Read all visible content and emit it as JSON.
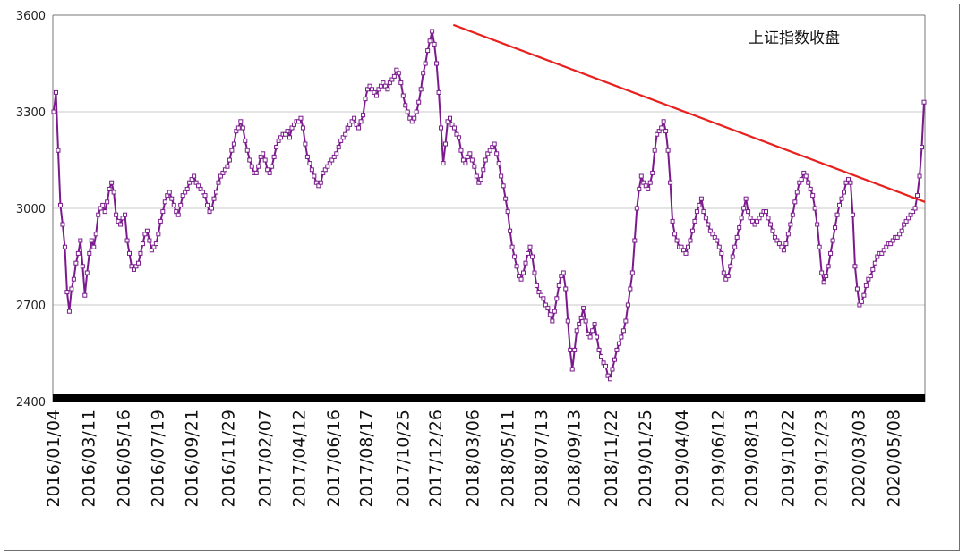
{
  "chart_data": {
    "type": "line",
    "title": "上证指数收盘",
    "xlabel": "",
    "ylabel": "",
    "ylim": [
      2400,
      3600
    ],
    "yticks": [
      2400,
      2700,
      3000,
      3300,
      3600
    ],
    "grid": true,
    "legend": "none",
    "date_range": [
      "2016/01/04",
      "2020/07/07"
    ],
    "tick_labels": [
      "2016/01/04",
      "2016/03/11",
      "2016/05/16",
      "2016/07/19",
      "2016/09/21",
      "2016/11/29",
      "2017/02/07",
      "2017/04/12",
      "2017/06/16",
      "2017/08/17",
      "2017/10/25",
      "2017/12/26",
      "2018/03/06",
      "2018/05/11",
      "2018/07/13",
      "2018/09/13",
      "2018/11/22",
      "2019/01/25",
      "2019/04/04",
      "2019/06/12",
      "2019/08/13",
      "2019/10/22",
      "2019/12/23",
      "2020/03/03",
      "2020/05/08"
    ],
    "series": [
      {
        "values": [
          3300,
          3360,
          3180,
          3010,
          2950,
          2880,
          2740,
          2680,
          2750,
          2780,
          2830,
          2860,
          2900,
          2820,
          2730,
          2800,
          2860,
          2900,
          2880,
          2920,
          2980,
          3000,
          3010,
          2990,
          3020,
          3060,
          3080,
          3050,
          2980,
          2960,
          2950,
          2970,
          2980,
          2900,
          2860,
          2820,
          2810,
          2820,
          2830,
          2860,
          2890,
          2920,
          2930,
          2900,
          2870,
          2880,
          2890,
          2920,
          2960,
          2990,
          3020,
          3040,
          3050,
          3030,
          3010,
          2990,
          2980,
          3010,
          3040,
          3050,
          3060,
          3080,
          3090,
          3100,
          3080,
          3070,
          3060,
          3050,
          3040,
          3010,
          2990,
          3000,
          3030,
          3050,
          3080,
          3100,
          3110,
          3120,
          3130,
          3150,
          3180,
          3200,
          3240,
          3250,
          3270,
          3250,
          3210,
          3180,
          3150,
          3130,
          3110,
          3110,
          3130,
          3160,
          3170,
          3150,
          3120,
          3110,
          3130,
          3160,
          3190,
          3210,
          3220,
          3230,
          3230,
          3240,
          3220,
          3250,
          3260,
          3270,
          3270,
          3280,
          3250,
          3200,
          3160,
          3140,
          3120,
          3100,
          3080,
          3070,
          3080,
          3110,
          3120,
          3130,
          3140,
          3150,
          3160,
          3170,
          3190,
          3210,
          3220,
          3230,
          3250,
          3260,
          3270,
          3280,
          3260,
          3250,
          3270,
          3290,
          3340,
          3370,
          3380,
          3370,
          3360,
          3350,
          3370,
          3380,
          3390,
          3380,
          3370,
          3390,
          3400,
          3410,
          3430,
          3420,
          3390,
          3350,
          3320,
          3300,
          3280,
          3270,
          3280,
          3300,
          3330,
          3370,
          3420,
          3450,
          3490,
          3520,
          3550,
          3510,
          3450,
          3360,
          3250,
          3140,
          3200,
          3270,
          3280,
          3260,
          3250,
          3230,
          3220,
          3180,
          3150,
          3140,
          3160,
          3170,
          3150,
          3130,
          3100,
          3080,
          3090,
          3120,
          3150,
          3170,
          3180,
          3190,
          3200,
          3170,
          3140,
          3100,
          3070,
          3030,
          2990,
          2930,
          2880,
          2850,
          2820,
          2790,
          2780,
          2800,
          2830,
          2860,
          2880,
          2850,
          2800,
          2760,
          2740,
          2730,
          2720,
          2700,
          2690,
          2670,
          2650,
          2680,
          2720,
          2760,
          2790,
          2800,
          2750,
          2650,
          2560,
          2500,
          2560,
          2620,
          2640,
          2660,
          2690,
          2650,
          2610,
          2600,
          2620,
          2640,
          2600,
          2560,
          2540,
          2520,
          2510,
          2480,
          2470,
          2500,
          2530,
          2560,
          2580,
          2600,
          2620,
          2650,
          2700,
          2750,
          2800,
          2900,
          3000,
          3060,
          3100,
          3080,
          3070,
          3060,
          3080,
          3110,
          3180,
          3230,
          3240,
          3250,
          3270,
          3240,
          3180,
          3080,
          2960,
          2920,
          2900,
          2880,
          2880,
          2870,
          2860,
          2880,
          2900,
          2930,
          2960,
          2990,
          3010,
          3030,
          2990,
          2970,
          2950,
          2930,
          2920,
          2910,
          2900,
          2880,
          2860,
          2800,
          2780,
          2790,
          2820,
          2850,
          2880,
          2910,
          2940,
          2970,
          3000,
          3030,
          2990,
          2970,
          2960,
          2950,
          2960,
          2970,
          2980,
          2990,
          2990,
          2970,
          2950,
          2930,
          2910,
          2900,
          2890,
          2880,
          2870,
          2890,
          2920,
          2950,
          2980,
          3020,
          3050,
          3080,
          3090,
          3110,
          3100,
          3080,
          3060,
          3040,
          3000,
          2950,
          2880,
          2800,
          2770,
          2790,
          2820,
          2860,
          2900,
          2940,
          2980,
          3010,
          3030,
          3050,
          3080,
          3090,
          3080,
          2980,
          2820,
          2750,
          2700,
          2710,
          2730,
          2760,
          2780,
          2790,
          2810,
          2830,
          2850,
          2860,
          2860,
          2870,
          2880,
          2890,
          2890,
          2900,
          2910,
          2910,
          2920,
          2930,
          2950,
          2960,
          2970,
          2980,
          2990,
          3000,
          3040,
          3100,
          3190,
          3330
        ]
      }
    ],
    "trendline": {
      "from": {
        "date": "2018/01/29",
        "value": 3570
      },
      "to": {
        "date": "2020/07/07",
        "value": 3020
      }
    },
    "colors": {
      "line": "#7a1a8c",
      "marker_fill": "#ffffff",
      "trendline": "#e8201e",
      "grid": "#c8c8c8",
      "axis": "#777777",
      "xaxis_band": "#000000"
    }
  }
}
